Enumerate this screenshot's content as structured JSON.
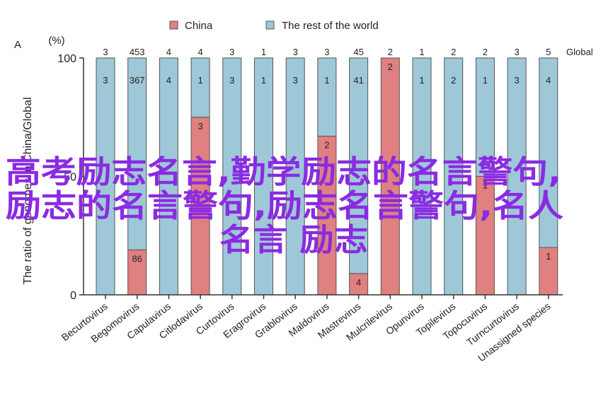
{
  "panel_label": "A",
  "colors": {
    "china": "#e08080",
    "rest": "#9ec8d8",
    "stroke": "#555555",
    "axis": "#333333",
    "watermark": "#8a2be2"
  },
  "chart_data": {
    "type": "bar",
    "stacked": true,
    "ylabel": "The ratio of genomes in China/Global",
    "yunit": "(%)",
    "ylim": [
      0,
      100
    ],
    "yticks": [
      0,
      50,
      100
    ],
    "top_axis_label": "Global",
    "categories": [
      "Becurtovirus",
      "Begomovirus",
      "Capulavirus",
      "Citlodavirus",
      "Curtovirus",
      "Eragrovirus",
      "Grablovirus",
      "Maldovirus",
      "Mastrevirus",
      "Mulcrilevirus",
      "Opunvirus",
      "Topilevirus",
      "Topocuvirus",
      "Turncurtovirus",
      "Unassigned species"
    ],
    "global_counts": [
      "3",
      "453",
      "4",
      "4",
      "3",
      "1",
      "3",
      "3",
      "45",
      "2",
      "1",
      "2",
      "2",
      "3",
      "5"
    ],
    "series": [
      {
        "name": "China",
        "key": "china",
        "values": [
          0,
          19,
          0,
          75,
          0,
          0,
          0,
          67,
          9,
          100,
          0,
          0,
          50,
          0,
          20
        ],
        "labels": [
          "",
          "86",
          "",
          "3",
          "",
          "",
          "",
          "2",
          "4",
          "2",
          "",
          "",
          "1",
          "",
          "1"
        ]
      },
      {
        "name": "The rest of the world",
        "key": "rest",
        "values": [
          100,
          81,
          100,
          25,
          100,
          100,
          100,
          33,
          91,
          0,
          100,
          100,
          50,
          100,
          80
        ],
        "labels": [
          "3",
          "367",
          "4",
          "1",
          "3",
          "1",
          "3",
          "1",
          "41",
          "",
          "1",
          "2",
          "1",
          "3",
          "4"
        ]
      }
    ]
  },
  "watermark": {
    "line1": "高考励志名言,勤学励志的名言警句,",
    "line2": "励志的名言警句,励志名言警句,名人",
    "line3": "名言 励志"
  }
}
